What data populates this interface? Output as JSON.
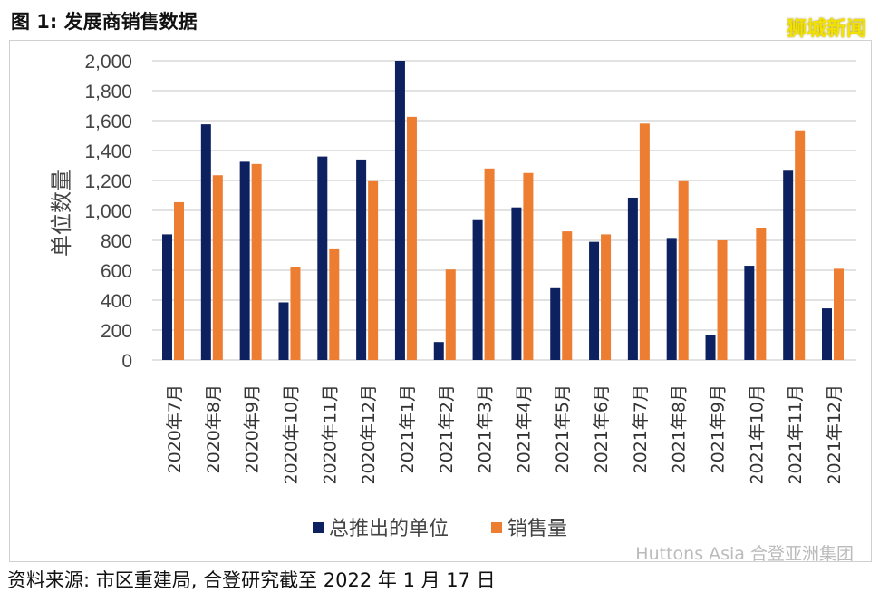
{
  "title": "图 1: 发展商销售数据",
  "watermark": "狮城新闻",
  "brand": "Huttons Asia 合登亚洲集团",
  "source": "资料来源: 市区重建局, 合登研究截至 2022 年 1 月 17 日",
  "source_watermark": "shicheng.news",
  "chart_data": {
    "type": "bar",
    "title": "发展商销售数据",
    "xlabel": "",
    "ylabel": "单位数量",
    "ylim": [
      0,
      2000
    ],
    "yticks": [
      0,
      200,
      400,
      600,
      800,
      1000,
      1200,
      1400,
      1600,
      1800,
      2000
    ],
    "ytick_labels": [
      "0",
      "200",
      "400",
      "600",
      "800",
      "1,000",
      "1,200",
      "1,400",
      "1,600",
      "1,800",
      "2,000"
    ],
    "grid": true,
    "legend": "bottom",
    "categories": [
      "2020年7月",
      "2020年8月",
      "2020年9月",
      "2020年10月",
      "2020年11月",
      "2020年12月",
      "2021年1月",
      "2021年2月",
      "2021年3月",
      "2021年4月",
      "2021年5月",
      "2021年6月",
      "2021年7月",
      "2021年8月",
      "2021年9月",
      "2021年10月",
      "2021年11月",
      "2021年12月"
    ],
    "series": [
      {
        "name": "总推出的单位",
        "color": "#0d2160",
        "values": [
          840,
          1575,
          1325,
          385,
          1360,
          1340,
          2000,
          120,
          935,
          1020,
          480,
          790,
          1085,
          810,
          165,
          630,
          1265,
          345
        ]
      },
      {
        "name": "销售量",
        "color": "#ed7d31",
        "values": [
          1055,
          1235,
          1310,
          620,
          740,
          1195,
          1625,
          605,
          1280,
          1250,
          860,
          840,
          1580,
          1195,
          800,
          880,
          1535,
          610
        ]
      }
    ]
  }
}
